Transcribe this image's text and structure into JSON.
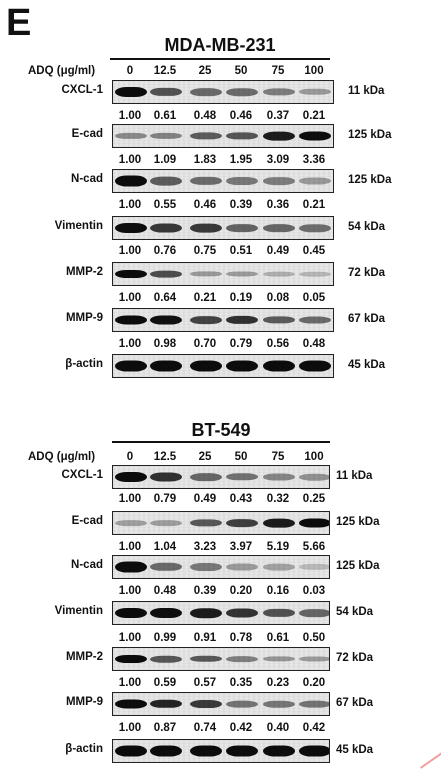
{
  "panel_letter": "E",
  "dose_label": "ADQ (μg/ml)",
  "doses": [
    "0",
    "12.5",
    "25",
    "50",
    "75",
    "100"
  ],
  "panels": [
    {
      "cell_line": "MDA-MB-231",
      "blots": [
        {
          "protein": "CXCL-1",
          "kda": "11 kDa",
          "ratios": [
            "1.00",
            "0.61",
            "0.48",
            "0.46",
            "0.37",
            "0.21"
          ]
        },
        {
          "protein": "E-cad",
          "kda": "125 kDa",
          "ratios": [
            "1.00",
            "1.09",
            "1.83",
            "1.95",
            "3.09",
            "3.36"
          ]
        },
        {
          "protein": "N-cad",
          "kda": "125 kDa",
          "ratios": [
            "1.00",
            "0.55",
            "0.46",
            "0.39",
            "0.36",
            "0.21"
          ]
        },
        {
          "protein": "Vimentin",
          "kda": "54 kDa",
          "ratios": [
            "1.00",
            "0.76",
            "0.75",
            "0.51",
            "0.49",
            "0.45"
          ]
        },
        {
          "protein": "MMP-2",
          "kda": "72 kDa",
          "ratios": [
            "1.00",
            "0.64",
            "0.21",
            "0.19",
            "0.08",
            "0.05"
          ]
        },
        {
          "protein": "MMP-9",
          "kda": "67 kDa",
          "ratios": [
            "1.00",
            "0.98",
            "0.70",
            "0.79",
            "0.56",
            "0.48"
          ]
        },
        {
          "protein": "β-actin",
          "kda": "45 kDa",
          "ratios": []
        }
      ]
    },
    {
      "cell_line": "BT-549",
      "blots": [
        {
          "protein": "CXCL-1",
          "kda": "11 kDa",
          "ratios": [
            "1.00",
            "0.79",
            "0.49",
            "0.43",
            "0.32",
            "0.25"
          ]
        },
        {
          "protein": "E-cad",
          "kda": "125 kDa",
          "ratios": [
            "1.00",
            "1.04",
            "3.23",
            "3.97",
            "5.19",
            "5.66"
          ]
        },
        {
          "protein": "N-cad",
          "kda": "125 kDa",
          "ratios": [
            "1.00",
            "0.48",
            "0.39",
            "0.20",
            "0.16",
            "0.03"
          ]
        },
        {
          "protein": "Vimentin",
          "kda": "54 kDa",
          "ratios": [
            "1.00",
            "0.99",
            "0.91",
            "0.78",
            "0.61",
            "0.50"
          ]
        },
        {
          "protein": "MMP-2",
          "kda": "72 kDa",
          "ratios": [
            "1.00",
            "0.59",
            "0.57",
            "0.35",
            "0.23",
            "0.20"
          ]
        },
        {
          "protein": "MMP-9",
          "kda": "67 kDa",
          "ratios": [
            "1.00",
            "0.87",
            "0.74",
            "0.42",
            "0.40",
            "0.42"
          ]
        },
        {
          "protein": "β-actin",
          "kda": "45 kDa",
          "ratios": []
        }
      ]
    }
  ]
}
